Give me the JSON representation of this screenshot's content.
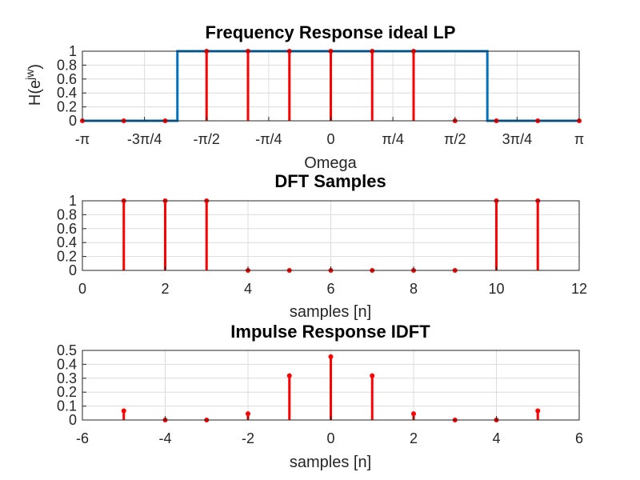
{
  "chart_data": [
    {
      "type": "line+stem",
      "title": "Frequency Response ideal LP",
      "xlabel": "Omega",
      "ylabel": "H(e^jw)",
      "ylabel_base": "H(e",
      "ylabel_sup": "jw",
      "ylabel_close": ")",
      "xlim": [
        -3.14159,
        3.14159
      ],
      "ylim": [
        0,
        1
      ],
      "grid": true,
      "xticks": [
        -3.14159,
        -2.35619,
        -1.5708,
        -0.785398,
        0,
        0.785398,
        1.5708,
        2.35619,
        3.14159
      ],
      "xticklabels": [
        "-π",
        "-3π/4",
        "-π/2",
        "-π/4",
        "0",
        "π/4",
        "π/2",
        "3π/4",
        "π"
      ],
      "yticks": [
        0,
        0.2,
        0.4,
        0.6,
        0.8,
        1
      ],
      "yticklabels": [
        "0",
        "0.2",
        "0.4",
        "0.6",
        "0.8",
        "1"
      ],
      "line": {
        "color": "#0072bd",
        "x": [
          -3.14159,
          -1.94,
          -1.94,
          1.98,
          1.98,
          3.14159
        ],
        "y": [
          0,
          0,
          1,
          1,
          0,
          0
        ]
      },
      "stem": {
        "color": "#ff0000",
        "x": [
          -3.14159,
          -2.61799,
          -2.0944,
          -1.5708,
          -1.0472,
          -0.523599,
          0,
          0.523599,
          1.0472,
          1.5708,
          2.0944,
          2.61799,
          3.14159
        ],
        "y": [
          0,
          0,
          0,
          1,
          1,
          1,
          1,
          1,
          1,
          0,
          0,
          0,
          0
        ]
      }
    },
    {
      "type": "stem",
      "title": "DFT Samples",
      "xlabel": "samples [n]",
      "ylabel": "",
      "xlim": [
        0,
        12
      ],
      "ylim": [
        0,
        1
      ],
      "grid": true,
      "xticks": [
        0,
        2,
        4,
        6,
        8,
        10,
        12
      ],
      "xticklabels": [
        "0",
        "2",
        "4",
        "6",
        "8",
        "10",
        "12"
      ],
      "yticks": [
        0,
        0.2,
        0.4,
        0.6,
        0.8,
        1
      ],
      "yticklabels": [
        "0",
        "0.2",
        "0.4",
        "0.6",
        "0.8",
        "1"
      ],
      "stem": {
        "color": "#ff0000",
        "x": [
          1,
          2,
          3,
          4,
          5,
          6,
          7,
          8,
          9,
          10,
          11
        ],
        "y": [
          1,
          1,
          1,
          0,
          0,
          0,
          0,
          0,
          0,
          1,
          1
        ]
      }
    },
    {
      "type": "stem",
      "title": "Impulse Response IDFT",
      "xlabel": "samples [n]",
      "ylabel": "",
      "xlim": [
        -6,
        6
      ],
      "ylim": [
        0,
        0.5
      ],
      "grid": true,
      "xticks": [
        -6,
        -4,
        -2,
        0,
        2,
        4,
        6
      ],
      "xticklabels": [
        "-6",
        "-4",
        "-2",
        "0",
        "2",
        "4",
        "6"
      ],
      "yticks": [
        0,
        0.1,
        0.2,
        0.3,
        0.4,
        0.5
      ],
      "yticklabels": [
        "0",
        "0.1",
        "0.2",
        "0.3",
        "0.4",
        "0.5"
      ],
      "stem": {
        "color": "#ff0000",
        "x": [
          -5,
          -4,
          -3,
          -2,
          -1,
          0,
          1,
          2,
          3,
          4,
          5
        ],
        "y": [
          0.066,
          0,
          0,
          0.045,
          0.318,
          0.455,
          0.318,
          0.045,
          0,
          0,
          0.066
        ]
      }
    }
  ]
}
